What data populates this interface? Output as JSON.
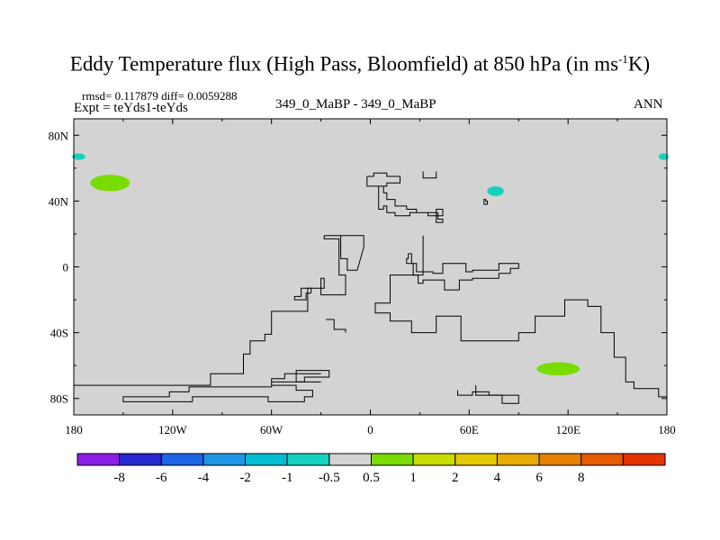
{
  "title": {
    "main": "Eddy Temperature flux (High Pass, Bloomfield) at 850 hPa (in ms",
    "superscript": "-1",
    "tail": "K)"
  },
  "header": {
    "stats": "rmsd= 0.117879 diff= 0.0059288",
    "expt": "Expt = teYds1-teYds",
    "center_label": "349_0_MaBP - 349_0_MaBP",
    "season": "ANN"
  },
  "chart_data": {
    "type": "heatmap",
    "title": "Eddy Temperature flux (High Pass, Bloomfield) at 850 hPa (in ms-1K)",
    "x_range": [
      -180,
      180
    ],
    "y_range": [
      -90,
      90
    ],
    "x_ticks": [
      {
        "value": -180,
        "label": "180"
      },
      {
        "value": -120,
        "label": "120W"
      },
      {
        "value": -60,
        "label": "60W"
      },
      {
        "value": 0,
        "label": "0"
      },
      {
        "value": 60,
        "label": "60E"
      },
      {
        "value": 120,
        "label": "120E"
      },
      {
        "value": 180,
        "label": "180"
      }
    ],
    "y_ticks": [
      {
        "value": 80,
        "label": "80N"
      },
      {
        "value": 40,
        "label": "40N"
      },
      {
        "value": 0,
        "label": "0"
      },
      {
        "value": -40,
        "label": "40S"
      },
      {
        "value": -80,
        "label": "80S"
      }
    ],
    "background_color": "#d3d3d3",
    "colorbar": {
      "colors": [
        "#8a1ee6",
        "#2828d2",
        "#1e64e6",
        "#1e96e6",
        "#00bed2",
        "#14d2be",
        "#d3d3d3",
        "#78dc00",
        "#c8dc00",
        "#e6c800",
        "#e6aa00",
        "#e68200",
        "#e65a00",
        "#e63200"
      ],
      "labels": [
        "-8",
        "-6",
        "-4",
        "-2",
        "-1",
        "-0.5",
        "0.5",
        "1",
        "2",
        "4",
        "6",
        "8"
      ]
    },
    "anomalies": [
      {
        "lon": -158,
        "lat": 51,
        "level": "1",
        "color": "#78dc00"
      },
      {
        "lon": -177,
        "lat": 67,
        "level": "-0.5",
        "color": "#14d2be"
      },
      {
        "lon": 178,
        "lat": 67,
        "level": "-0.5",
        "color": "#14d2be"
      },
      {
        "lon": 76,
        "lat": 46,
        "level": "-0.5",
        "color": "#14d2be"
      },
      {
        "lon": 114,
        "lat": -62,
        "level": "1",
        "color": "#78dc00"
      }
    ],
    "coastlines": [
      [
        [
          -2,
          55
        ],
        [
          -2,
          49
        ],
        [
          8,
          49
        ],
        [
          8,
          45
        ],
        [
          10,
          45
        ],
        [
          10,
          41
        ],
        [
          15,
          41
        ],
        [
          15,
          37
        ],
        [
          22,
          37
        ],
        [
          22,
          35
        ],
        [
          28,
          35
        ],
        [
          28,
          33
        ],
        [
          35,
          33
        ],
        [
          35,
          31
        ],
        [
          40,
          31
        ],
        [
          40,
          35
        ],
        [
          44,
          35
        ],
        [
          44,
          31
        ],
        [
          40,
          31
        ],
        [
          40,
          27
        ],
        [
          44,
          27
        ],
        [
          44,
          29
        ],
        [
          41,
          29
        ],
        [
          41,
          33
        ],
        [
          24,
          33
        ],
        [
          24,
          31
        ],
        [
          15,
          31
        ],
        [
          15,
          33
        ],
        [
          10,
          33
        ],
        [
          10,
          37
        ],
        [
          8,
          37
        ],
        [
          8,
          35
        ],
        [
          5,
          35
        ],
        [
          5,
          49
        ],
        [
          10,
          49
        ],
        [
          10,
          51
        ],
        [
          18,
          51
        ],
        [
          18,
          55
        ],
        [
          10,
          55
        ],
        [
          10,
          57
        ],
        [
          2,
          57
        ],
        [
          2,
          55
        ],
        [
          -2,
          55
        ]
      ],
      [
        [
          -30,
          -70
        ],
        [
          -60,
          -70
        ],
        [
          -60,
          -73
        ],
        [
          -110,
          -73
        ],
        [
          -110,
          -76
        ],
        [
          -122,
          -76
        ],
        [
          -122,
          -79
        ],
        [
          -150,
          -79
        ],
        [
          -150,
          -82
        ],
        [
          -108,
          -82
        ],
        [
          -108,
          -79
        ],
        [
          -62,
          -79
        ],
        [
          -62,
          -82
        ],
        [
          -40,
          -82
        ],
        [
          -40,
          -79
        ],
        [
          -35,
          -79
        ],
        [
          -35,
          -75
        ],
        [
          -45,
          -75
        ],
        [
          -45,
          -72
        ],
        [
          -60,
          -72
        ],
        [
          -60,
          -68
        ],
        [
          -52,
          -68
        ],
        [
          -52,
          -65
        ],
        [
          -30,
          -65
        ]
      ],
      [
        [
          -45,
          -70
        ],
        [
          -40,
          -70
        ],
        [
          -40,
          -67
        ],
        [
          -25,
          -67
        ],
        [
          -25,
          -63
        ],
        [
          -45,
          -63
        ],
        [
          -45,
          -70
        ]
      ],
      [
        [
          32,
          19
        ],
        [
          32,
          -5
        ],
        [
          12,
          -5
        ],
        [
          12,
          -22
        ],
        [
          3,
          -22
        ],
        [
          3,
          -28
        ],
        [
          12,
          -28
        ],
        [
          12,
          -33
        ],
        [
          25,
          -33
        ],
        [
          25,
          -40
        ],
        [
          40,
          -40
        ],
        [
          40,
          -30
        ],
        [
          55,
          -30
        ],
        [
          55,
          -45
        ],
        [
          90,
          -45
        ],
        [
          90,
          -40
        ],
        [
          100,
          -40
        ],
        [
          100,
          -30
        ],
        [
          118,
          -30
        ],
        [
          118,
          -20
        ],
        [
          132,
          -20
        ],
        [
          132,
          -24
        ],
        [
          140,
          -24
        ],
        [
          140,
          -40
        ],
        [
          148,
          -40
        ],
        [
          148,
          -55
        ],
        [
          155,
          -55
        ],
        [
          155,
          -70
        ],
        [
          160,
          -70
        ],
        [
          160,
          -74
        ],
        [
          175,
          -74
        ],
        [
          175,
          -79
        ],
        [
          180,
          -79
        ]
      ],
      [
        [
          -28,
          19
        ],
        [
          -28,
          17
        ],
        [
          -19,
          17
        ],
        [
          -19,
          -5
        ],
        [
          -15,
          -5
        ],
        [
          -15,
          -17
        ],
        [
          -30,
          -17
        ],
        [
          -30,
          -7
        ],
        [
          -28,
          -7
        ],
        [
          -28,
          -13
        ],
        [
          -38,
          -13
        ],
        [
          -38,
          -27
        ],
        [
          -60,
          -27
        ],
        [
          -60,
          -41
        ],
        [
          -64,
          -41
        ],
        [
          -64,
          -45
        ],
        [
          -73,
          -45
        ],
        [
          -73,
          -53
        ],
        [
          -77,
          -53
        ],
        [
          -77,
          -65
        ],
        [
          -97,
          -65
        ],
        [
          -97,
          -72
        ],
        [
          -180,
          -72
        ]
      ],
      [
        [
          -28,
          19
        ],
        [
          -4,
          19
        ],
        [
          -4,
          17
        ],
        [
          -4,
          12
        ],
        [
          -8,
          -2
        ],
        [
          -14,
          -2
        ],
        [
          -14,
          5
        ],
        [
          -18,
          5
        ],
        [
          -18,
          19
        ],
        [
          -28,
          19
        ]
      ],
      [
        [
          -36,
          -16
        ],
        [
          -39,
          -16
        ],
        [
          -39,
          -20
        ],
        [
          -46,
          -20
        ],
        [
          -46,
          -18
        ],
        [
          -42,
          -18
        ],
        [
          -42,
          -13
        ],
        [
          -36,
          -13
        ],
        [
          -36,
          -16
        ]
      ],
      [
        [
          53,
          -75
        ],
        [
          53,
          -78
        ],
        [
          62,
          -78
        ],
        [
          62,
          -76
        ],
        [
          72,
          -76
        ],
        [
          72,
          -78
        ],
        [
          80,
          -78
        ],
        [
          80,
          -83
        ],
        [
          90,
          -83
        ],
        [
          90,
          -80
        ]
      ],
      [
        [
          64,
          -72
        ],
        [
          64,
          -78
        ],
        [
          90,
          -78
        ],
        [
          90,
          -80
        ]
      ],
      [
        [
          23,
          8
        ],
        [
          23,
          5
        ],
        [
          22,
          5
        ],
        [
          22,
          2
        ],
        [
          26,
          2
        ],
        [
          26,
          -5
        ],
        [
          29,
          -5
        ],
        [
          29,
          -10
        ],
        [
          32,
          -10
        ],
        [
          32,
          -8
        ],
        [
          45,
          -8
        ],
        [
          45,
          -14
        ],
        [
          54,
          -14
        ],
        [
          54,
          -8
        ],
        [
          62,
          -8
        ],
        [
          62,
          -7
        ],
        [
          78,
          -7
        ],
        [
          78,
          -4
        ],
        [
          85,
          -4
        ],
        [
          85,
          -1
        ],
        [
          90,
          -1
        ],
        [
          90,
          2
        ],
        [
          78,
          2
        ],
        [
          78,
          -2
        ],
        [
          62,
          -2
        ],
        [
          62,
          -3
        ],
        [
          58,
          -3
        ],
        [
          58,
          2
        ],
        [
          44,
          2
        ],
        [
          44,
          -4
        ],
        [
          38,
          -4
        ],
        [
          38,
          -3
        ],
        [
          28,
          -3
        ],
        [
          28,
          2
        ],
        [
          25,
          2
        ],
        [
          25,
          8
        ],
        [
          23,
          8
        ]
      ],
      [
        [
          -27,
          -32
        ],
        [
          -22,
          -32
        ],
        [
          -22,
          -38
        ],
        [
          -15,
          -38
        ],
        [
          -15,
          -40
        ]
      ],
      [
        [
          32,
          58
        ],
        [
          32,
          54
        ],
        [
          40,
          54
        ],
        [
          40,
          58
        ]
      ]
    ],
    "small_islands": [
      [
        [
          69,
          41
        ],
        [
          70,
          41
        ],
        [
          70,
          40
        ],
        [
          71,
          40
        ],
        [
          71,
          38
        ],
        [
          69,
          38
        ],
        [
          69,
          41
        ]
      ]
    ]
  }
}
